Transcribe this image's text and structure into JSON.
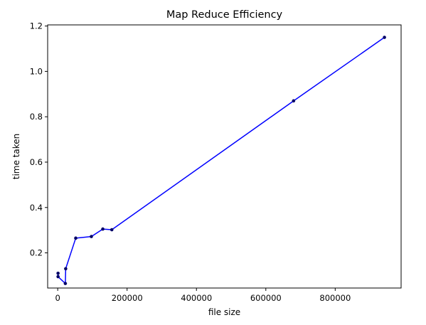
{
  "chart_data": {
    "type": "line",
    "title": "Map Reduce Efficiency",
    "xlabel": "file size",
    "ylabel": "time taken",
    "xlim": [
      -29000,
      990000
    ],
    "ylim": [
      0.045,
      1.205
    ],
    "xticks": [
      0,
      200000,
      400000,
      600000,
      800000
    ],
    "xtick_labels": [
      "0",
      "200000",
      "400000",
      "600000",
      "800000"
    ],
    "yticks": [
      0.2,
      0.4,
      0.6,
      0.8,
      1.0,
      1.2
    ],
    "ytick_labels": [
      "0.2",
      "0.4",
      "0.6",
      "0.8",
      "1.0",
      "1.2"
    ],
    "grid": false,
    "series": [
      {
        "line_color": "#0000ff",
        "marker_color": "#000066",
        "x": [
          1000,
          1000,
          22000,
          23000,
          52000,
          97000,
          130000,
          156000,
          680000,
          942000
        ],
        "y": [
          0.11,
          0.095,
          0.065,
          0.13,
          0.265,
          0.272,
          0.305,
          0.302,
          0.87,
          1.15
        ]
      }
    ]
  }
}
